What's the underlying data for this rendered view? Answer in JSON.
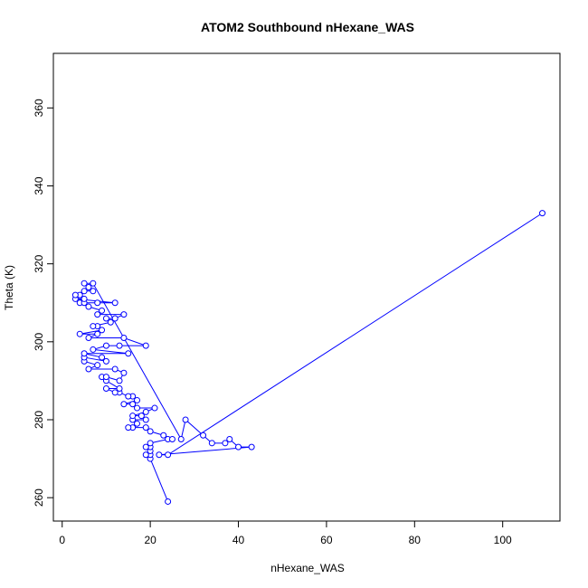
{
  "chart_data": {
    "type": "line",
    "title": "ATOM2 Southbound nHexane_WAS",
    "xlabel": "nHexane_WAS",
    "ylabel": "Theta (K)",
    "xlim": [
      -2,
      113
    ],
    "ylim": [
      254,
      374
    ],
    "x_ticks": [
      0,
      20,
      40,
      60,
      80,
      100
    ],
    "y_ticks": [
      260,
      280,
      300,
      320,
      340,
      360
    ],
    "grid": false,
    "line_color": "#0000ff",
    "markers": "open-circle",
    "series": [
      {
        "name": "",
        "points": [
          [
            24,
            259
          ],
          [
            20,
            270
          ],
          [
            20,
            271
          ],
          [
            19,
            271
          ],
          [
            20,
            272
          ],
          [
            20,
            273
          ],
          [
            19,
            273
          ],
          [
            20,
            274
          ],
          [
            24,
            275
          ],
          [
            25,
            275
          ],
          [
            23,
            276
          ],
          [
            20,
            277
          ],
          [
            19,
            278
          ],
          [
            16,
            278
          ],
          [
            15,
            278
          ],
          [
            17,
            279
          ],
          [
            16,
            280
          ],
          [
            19,
            280
          ],
          [
            18,
            281
          ],
          [
            16,
            281
          ],
          [
            19,
            282
          ],
          [
            21,
            283
          ],
          [
            17,
            283
          ],
          [
            16,
            284
          ],
          [
            14,
            284
          ],
          [
            17,
            285
          ],
          [
            16,
            286
          ],
          [
            15,
            286
          ],
          [
            13,
            287
          ],
          [
            12,
            287
          ],
          [
            10,
            288
          ],
          [
            13,
            288
          ],
          [
            10,
            290
          ],
          [
            9,
            291
          ],
          [
            10,
            291
          ],
          [
            13,
            290
          ],
          [
            14,
            292
          ],
          [
            12,
            293
          ],
          [
            6,
            293
          ],
          [
            8,
            294
          ],
          [
            5,
            295
          ],
          [
            5,
            296
          ],
          [
            10,
            295
          ],
          [
            9,
            296
          ],
          [
            5,
            297
          ],
          [
            15,
            297
          ],
          [
            7,
            298
          ],
          [
            10,
            299
          ],
          [
            13,
            299
          ],
          [
            19,
            299
          ],
          [
            14,
            301
          ],
          [
            6,
            301
          ],
          [
            8,
            302
          ],
          [
            4,
            302
          ],
          [
            9,
            303
          ],
          [
            8,
            304
          ],
          [
            7,
            304
          ],
          [
            11,
            305
          ],
          [
            10,
            306
          ],
          [
            12,
            306
          ],
          [
            14,
            307
          ],
          [
            8,
            307
          ],
          [
            9,
            308
          ],
          [
            6,
            309
          ],
          [
            4,
            310
          ],
          [
            8,
            310
          ],
          [
            5,
            310
          ],
          [
            12,
            310
          ],
          [
            3,
            311
          ],
          [
            5,
            311
          ],
          [
            4,
            312
          ],
          [
            3,
            312
          ],
          [
            5,
            313
          ],
          [
            7,
            313
          ],
          [
            6,
            314
          ],
          [
            5,
            315
          ],
          [
            7,
            315
          ],
          [
            27,
            275
          ],
          [
            28,
            280
          ],
          [
            32,
            276
          ],
          [
            34,
            274
          ],
          [
            37,
            274
          ],
          [
            38,
            275
          ],
          [
            40,
            273
          ],
          [
            43,
            273
          ],
          [
            22,
            271
          ],
          [
            24,
            271
          ],
          [
            109,
            333
          ]
        ]
      }
    ]
  }
}
